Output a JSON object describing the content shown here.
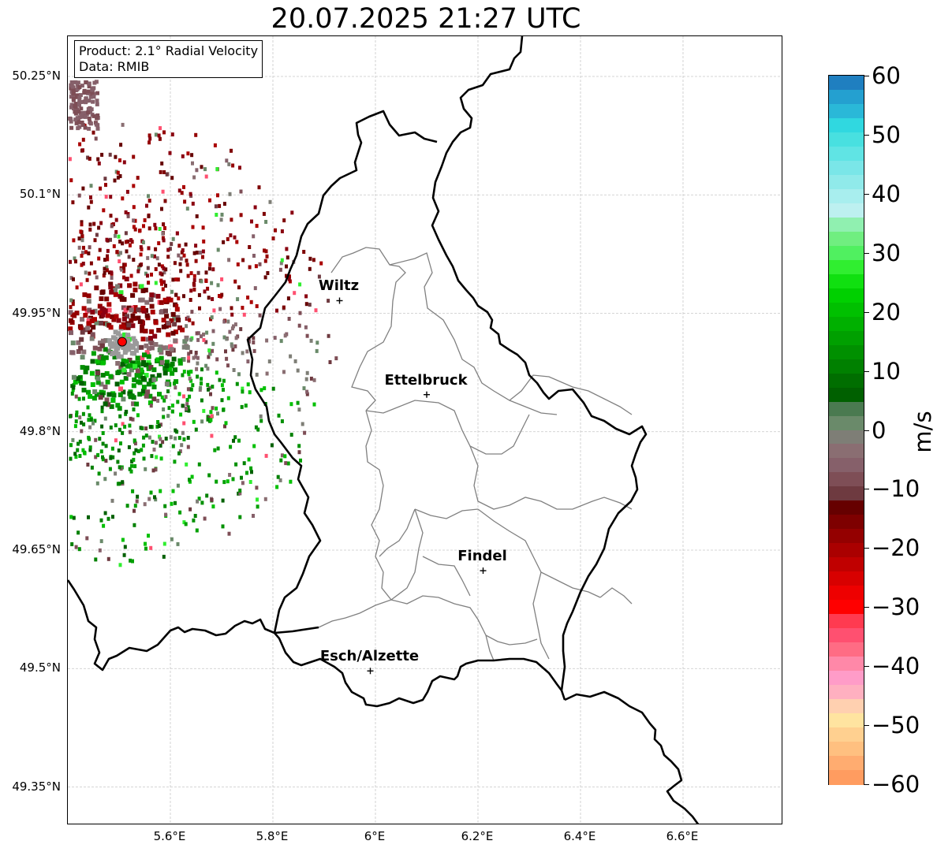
{
  "title": "20.07.2025 21:27 UTC",
  "info": {
    "product": "Product: 2.1° Radial Velocity",
    "data": "Data: RMIB"
  },
  "axes": {
    "lat_labels": [
      "50.25°N",
      "50.1°N",
      "49.95°N",
      "49.8°N",
      "49.65°N",
      "49.5°N",
      "49.35°N"
    ],
    "lon_labels": [
      "5.6°E",
      "5.8°E",
      "6°E",
      "6.2°E",
      "6.4°E",
      "6.6°E"
    ]
  },
  "cities": [
    {
      "name": "Wiltz",
      "lon": 5.93,
      "lat": 49.966
    },
    {
      "name": "Ettelbruck",
      "lon": 6.1,
      "lat": 49.847
    },
    {
      "name": "Findel",
      "lon": 6.21,
      "lat": 49.624
    },
    {
      "name": "Esch/Alzette",
      "lon": 5.99,
      "lat": 49.497
    }
  ],
  "radar_site": {
    "lon": 5.506,
    "lat": 49.914
  },
  "colorbar": {
    "unit": "m/s",
    "tick_labels": [
      "60",
      "50",
      "40",
      "30",
      "20",
      "10",
      "0",
      "−10",
      "−20",
      "−30",
      "−40",
      "−50",
      "−60"
    ],
    "vmin": -60,
    "vmax": 60,
    "colors": [
      "#1f7fc0",
      "#24a0d0",
      "#2ab8d8",
      "#30d8e0",
      "#48e0e0",
      "#60e4e4",
      "#7ae6e8",
      "#90eaea",
      "#a8eeee",
      "#bdf0f0",
      "#90f0b0",
      "#70ee80",
      "#50f060",
      "#30ee30",
      "#10e010",
      "#00d000",
      "#00c000",
      "#00b000",
      "#00a000",
      "#009000",
      "#008000",
      "#006e00",
      "#006000",
      "#4a7a50",
      "#6a8a6a",
      "#7e7e76",
      "#8a6e72",
      "#86606a",
      "#7e4e56",
      "#6e3a40",
      "#660000",
      "#7e0000",
      "#940000",
      "#aa0000",
      "#c00000",
      "#d80000",
      "#ee0000",
      "#ff0000",
      "#ff3a50",
      "#ff5070",
      "#ff6c84",
      "#ff88a8",
      "#ff9cc8",
      "#ffb0c0",
      "#ffd0b0",
      "#ffe4a0",
      "#ffd090",
      "#ffc080",
      "#ffac70",
      "#ff9c60"
    ]
  }
}
